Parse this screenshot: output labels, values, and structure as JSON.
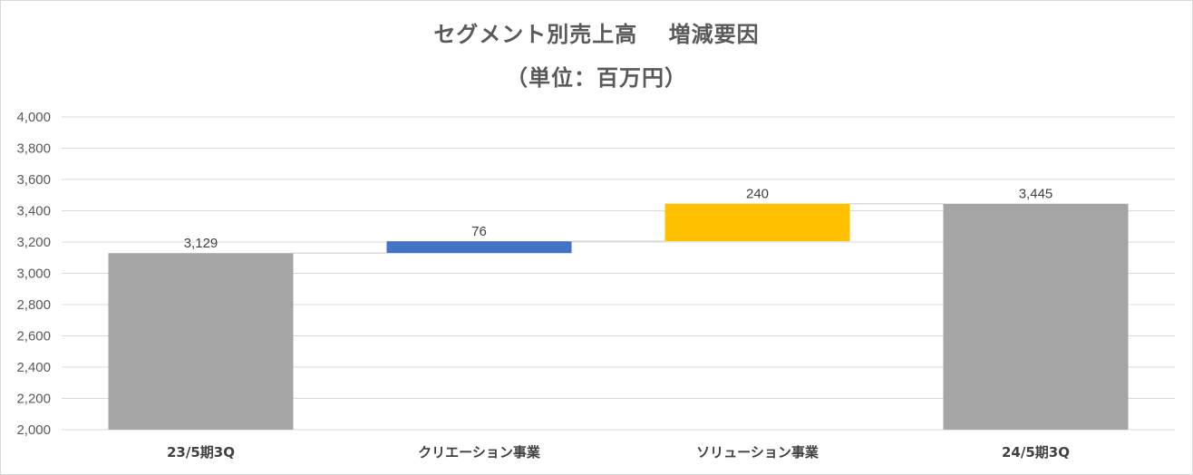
{
  "chart_data": {
    "type": "bar",
    "subtype": "waterfall",
    "title": "セグメント別売上高　 増減要因",
    "subtitle": "（単位：百万円）",
    "categories": [
      "23/5期3Q",
      "クリエーション事業",
      "ソリューション事業",
      "24/5期3Q"
    ],
    "series": [
      {
        "values": [
          3129,
          76,
          240,
          3445
        ],
        "kinds": [
          "total",
          "increase",
          "increase",
          "total"
        ],
        "data_labels": [
          "3,129",
          "76",
          "240",
          "3,445"
        ]
      }
    ],
    "ylim": [
      2000,
      4000
    ],
    "yticks": [
      2000,
      2200,
      2400,
      2600,
      2800,
      3000,
      3200,
      3400,
      3600,
      3800,
      4000
    ],
    "ytick_labels": [
      "2,000",
      "2,200",
      "2,400",
      "2,600",
      "2,800",
      "3,000",
      "3,200",
      "3,400",
      "3,600",
      "3,800",
      "4,000"
    ],
    "grid": true,
    "connectors": true,
    "colors": {
      "total": "#a5a5a5",
      "increase_1": "#4472c4",
      "increase_2": "#ffc000",
      "grid": "#d9d9d9",
      "connector": "#d9d9d9"
    }
  }
}
